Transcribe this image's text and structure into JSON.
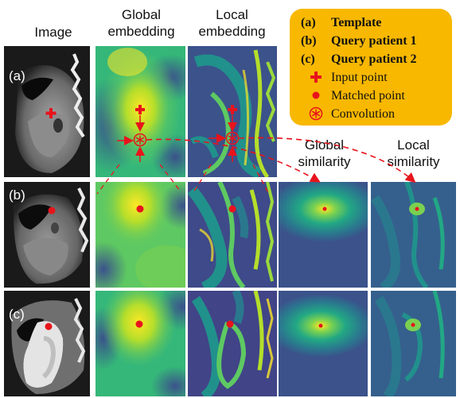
{
  "headers": {
    "image": "Image",
    "global_embedding": [
      "Global",
      "embedding"
    ],
    "local_embedding": [
      "Local",
      "embedding"
    ],
    "global_similarity": [
      "Global",
      "similarity"
    ],
    "local_similarity": [
      "Local",
      "similarity"
    ]
  },
  "rows": [
    {
      "label": "(a)"
    },
    {
      "label": "(b)"
    },
    {
      "label": "(c)"
    }
  ],
  "legend": {
    "items": [
      {
        "key": "(a)",
        "text": "Template",
        "bold": true,
        "symbol": ""
      },
      {
        "key": "(b)",
        "text": "Query patient 1",
        "bold": true,
        "symbol": ""
      },
      {
        "key": "(c)",
        "text": "Query patient 2",
        "bold": true,
        "symbol": ""
      },
      {
        "key": "",
        "text": "Input point",
        "bold": false,
        "symbol": "plus-marker"
      },
      {
        "key": "",
        "text": "Matched point",
        "bold": false,
        "symbol": "dot-marker"
      },
      {
        "key": "",
        "text": "Convolution",
        "bold": false,
        "symbol": "convolution-marker"
      }
    ]
  },
  "colors": {
    "marker_red": "#e8141c",
    "legend_bg": "#f8b800",
    "viridis_dark": "#440154",
    "viridis_blue": "#3b528b",
    "viridis_teal": "#21918c",
    "viridis_green": "#5ec962",
    "viridis_yellow": "#fde725"
  }
}
